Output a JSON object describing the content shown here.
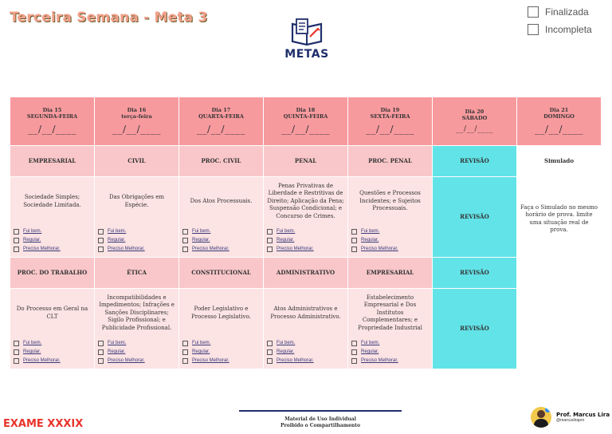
{
  "title": "Terceira Semana - Meta 3",
  "status": {
    "finalizada": "Finalizada",
    "incompleta": "Incompleta"
  },
  "logo_text": "METAS",
  "days": [
    {
      "day": "Dia 15",
      "weekday": "SEGUNDA-FEIRA",
      "date": "__/__/____"
    },
    {
      "day": "Dia 16",
      "weekday": "terça-feira",
      "date": "__/__/____"
    },
    {
      "day": "Dia 17",
      "weekday": "QUARTA-FEIRA",
      "date": "__/__/____"
    },
    {
      "day": "Dia 18",
      "weekday": "QUINTA-FEIRA",
      "date": "__/__/____"
    },
    {
      "day": "Dia 19",
      "weekday": "SEXTA-FEIRA",
      "date": "__/__/____"
    },
    {
      "day": "Dia 20",
      "weekday": "SÁBADO",
      "date": "__/__/____"
    },
    {
      "day": "Dia 21",
      "weekday": "DOMINGO",
      "date": "__/__/____"
    }
  ],
  "row1": {
    "subjects": [
      "EMPRESARIAL",
      "CIVIL",
      "PROC. CIVIL",
      "PENAL",
      "PROC.  PENAL"
    ],
    "contents": [
      "Sociedade Simples; Sociedade Limitada.",
      "Das Obrigações em Espécie.",
      "Dos Atos Processuais.",
      "Penas Privativas de Liberdade e Restritivas de Direito; Aplicação da Pena; Suspensão Condicional; e Concurso de Crimes.",
      "Questões e Processos Incidentes; e Sujeitos Processuais."
    ]
  },
  "row2": {
    "subjects": [
      "PROC.  DO TRABALHO",
      "ÉTICA",
      "CONSTITUCIONAL",
      "ADMINISTRATIVO",
      "EMPRESARIAL"
    ],
    "contents": [
      "Do Processo em Geral na CLT",
      "Incompatibilidades e Impedimentos; Infrações e Sanções Disciplinares; Sigilo Profissional; e Publicidade Profissional.",
      "Poder Legislativo e Processo Legislativo.",
      "Atos Administrativos e Processo Administrativo.",
      "Estabelecimento Empresarial e Dos Institutos Complementares; e Propriedade Industrial"
    ]
  },
  "options": [
    "Fui bem.",
    "Regular.",
    "Preciso Melhorar."
  ],
  "revisao": "REVISÃO",
  "simulado": {
    "label": "Simulado",
    "text": "Faça o Simulado no mesmo horário de prova. limite uma situação real de prova."
  },
  "footer": {
    "exam": "EXAME XXXIX",
    "line1": "Material de Uso Individual",
    "line2": "Proibido o Compartilhamento",
    "prof_name": "Prof. Marcus Lira",
    "prof_handle": "@marcuslirapro"
  },
  "colors": {
    "header": "#f79a9e",
    "subject": "#f9c7c9",
    "body": "#fce3e4",
    "revisao": "#62e3e8",
    "navy": "#1f2f6b"
  }
}
